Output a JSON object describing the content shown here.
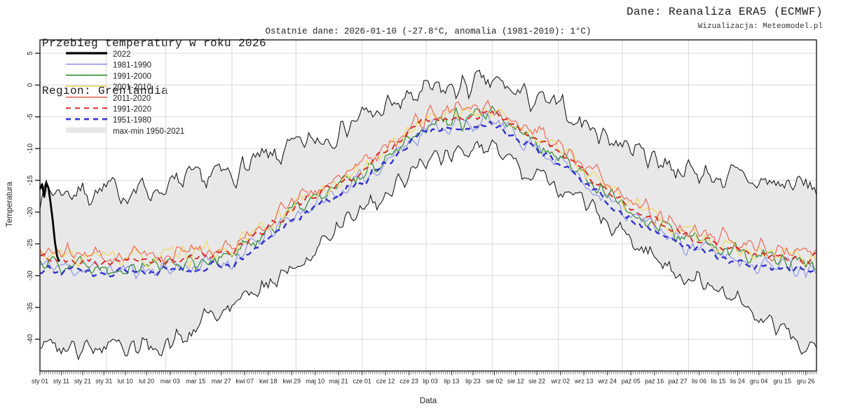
{
  "header": {
    "title_line1": "Przebieg temperatury w roku 2026",
    "title_line2": "Region: Grenlandia",
    "source": "Dane: Reanaliza ERA5 (ECMWF)",
    "visualization": "Wizualizacja: Meteomodel.pl",
    "subtitle": "Ostatnie dane: 2026-01-10 (-27.8°C, anomalia (1981-2010): 1°C)"
  },
  "axes": {
    "x_title": "Data",
    "y_title": "Temperatura"
  },
  "chart_data": {
    "type": "line",
    "title": "Przebieg temperatury w roku 2026",
    "region": "Grenlandia",
    "xlabel": "Data",
    "ylabel": "Temperatura",
    "ylim": [
      -45,
      7.1
    ],
    "yticks": [
      5,
      0,
      -5,
      -10,
      -15,
      -20,
      -25,
      -30,
      -35,
      -40
    ],
    "grid": true,
    "grid_color": "#d8d8d8",
    "frame_color": "#1a1a1a",
    "legend_position": "upper-left",
    "x_tick_labels": [
      {
        "doy": 1,
        "label": "sty 01"
      },
      {
        "doy": 11,
        "label": "sty 11"
      },
      {
        "doy": 21,
        "label": "sty 21"
      },
      {
        "doy": 31,
        "label": "sty 31"
      },
      {
        "doy": 41,
        "label": "lut 10"
      },
      {
        "doy": 51,
        "label": "lut 20"
      },
      {
        "doy": 62,
        "label": "mar 03"
      },
      {
        "doy": 74,
        "label": "mar 15"
      },
      {
        "doy": 86,
        "label": "mar 27"
      },
      {
        "doy": 97,
        "label": "kwi 07"
      },
      {
        "doy": 108,
        "label": "kwi 18"
      },
      {
        "doy": 119,
        "label": "kwi 29"
      },
      {
        "doy": 130,
        "label": "maj 10"
      },
      {
        "doy": 141,
        "label": "maj 21"
      },
      {
        "doy": 152,
        "label": "cze 01"
      },
      {
        "doy": 163,
        "label": "cze 12"
      },
      {
        "doy": 174,
        "label": "cze 23"
      },
      {
        "doy": 184,
        "label": "lip 03"
      },
      {
        "doy": 194,
        "label": "lip 13"
      },
      {
        "doy": 204,
        "label": "lip 23"
      },
      {
        "doy": 214,
        "label": "sie 02"
      },
      {
        "doy": 224,
        "label": "sie 12"
      },
      {
        "doy": 234,
        "label": "sie 22"
      },
      {
        "doy": 245,
        "label": "wrz 02"
      },
      {
        "doy": 256,
        "label": "wrz 13"
      },
      {
        "doy": 267,
        "label": "wrz 24"
      },
      {
        "doy": 278,
        "label": "paź 05"
      },
      {
        "doy": 289,
        "label": "paź 16"
      },
      {
        "doy": 300,
        "label": "paź 27"
      },
      {
        "doy": 310,
        "label": "lis 06"
      },
      {
        "doy": 319,
        "label": "lis 15"
      },
      {
        "doy": 328,
        "label": "lis 24"
      },
      {
        "doy": 338,
        "label": "gru 04"
      },
      {
        "doy": 349,
        "label": "gru 15"
      },
      {
        "doy": 360,
        "label": "gru 26"
      }
    ],
    "month_gridline_doys": [
      32,
      60,
      91,
      121,
      152,
      182,
      213,
      244,
      274,
      305,
      335
    ],
    "anchor_doys": [
      1,
      32,
      60,
      91,
      121,
      152,
      182,
      213,
      244,
      274,
      305,
      335,
      365
    ],
    "band": {
      "name": "max-min 1950-2021",
      "fill": "#e8e8e8",
      "edge_color": "#1a1a1a",
      "max_anchors": [
        -16.5,
        -16.8,
        -16.2,
        -13.8,
        -10.0,
        -5.2,
        -1.2,
        0.3,
        -3.8,
        -9.2,
        -13.6,
        -15.2,
        -16.0
      ],
      "min_anchors": [
        -40.5,
        -41.2,
        -41.0,
        -34.8,
        -28.0,
        -19.5,
        -11.8,
        -10.2,
        -15.8,
        -23.2,
        -30.5,
        -36.0,
        -41.3
      ]
    },
    "band_noise": {
      "max_amp": 1.9,
      "max_seed": 7,
      "min_amp": 1.6,
      "min_seed": 8
    },
    "series": [
      {
        "name": "1981-1990",
        "color": "#8f96e8",
        "width": 1.2,
        "noise": 1.3,
        "seed": 11,
        "anchors": [
          -28.4,
          -29.1,
          -28.9,
          -27.7,
          -20.4,
          -14.9,
          -6.7,
          -5.7,
          -11.7,
          -19.9,
          -25.2,
          -27.9,
          -28.7
        ]
      },
      {
        "name": "1991-2000",
        "color": "#2e8b2e",
        "width": 1.2,
        "noise": 1.3,
        "seed": 22,
        "anchors": [
          -27.6,
          -28.3,
          -28.1,
          -26.9,
          -19.6,
          -14.1,
          -5.9,
          -4.9,
          -10.9,
          -19.1,
          -24.4,
          -27.1,
          -27.9
        ]
      },
      {
        "name": "2001-2010",
        "color": "#eed95e",
        "width": 1.2,
        "noise": 1.3,
        "seed": 33,
        "anchors": [
          -26.7,
          -27.4,
          -27.2,
          -26.0,
          -18.7,
          -13.2,
          -5.0,
          -4.0,
          -10.0,
          -18.2,
          -23.5,
          -26.2,
          -27.0
        ]
      },
      {
        "name": "2011-2020",
        "color": "#ee6a58",
        "width": 1.2,
        "noise": 1.3,
        "seed": 44,
        "anchors": [
          -26.2,
          -26.9,
          -26.7,
          -25.5,
          -18.2,
          -12.7,
          -4.5,
          -3.5,
          -9.5,
          -17.7,
          -23.0,
          -25.7,
          -26.5
        ]
      },
      {
        "name": "1991-2020",
        "color": "#d42a2a",
        "width": 1.9,
        "dash": "8,6",
        "noise": 0.6,
        "seed": 55,
        "anchors": [
          -27.1,
          -27.8,
          -27.6,
          -26.4,
          -19.1,
          -13.6,
          -5.4,
          -4.4,
          -10.4,
          -18.6,
          -23.9,
          -26.6,
          -27.4
        ]
      },
      {
        "name": "1951-1980",
        "color": "#3232cf",
        "width": 2.4,
        "dash": "8,6",
        "noise": 0.6,
        "seed": 66,
        "anchors": [
          -28.8,
          -29.5,
          -29.3,
          -28.1,
          -20.8,
          -15.3,
          -7.1,
          -6.1,
          -12.1,
          -20.3,
          -25.6,
          -28.3,
          -29.1
        ]
      },
      {
        "name": "2022",
        "color": "#000000",
        "width": 2.8,
        "type": "daily",
        "start_doy": 1,
        "values": [
          -16.4,
          -15.6,
          -17.6,
          -15.4,
          -16.2,
          -18.6,
          -21.4,
          -24.6,
          -26.9,
          -27.8
        ]
      }
    ],
    "legend": [
      {
        "label": "2022",
        "swatch": "line",
        "color": "#000000",
        "width": 3.2
      },
      {
        "label": "1981-1990",
        "swatch": "line",
        "color": "#8f96e8",
        "width": 1.6
      },
      {
        "label": "1991-2000",
        "swatch": "line",
        "color": "#2e8b2e",
        "width": 1.6
      },
      {
        "label": "2001-2010",
        "swatch": "line",
        "color": "#eed95e",
        "width": 1.6
      },
      {
        "label": "2011-2020",
        "swatch": "line",
        "color": "#ee6a58",
        "width": 1.6
      },
      {
        "label": "1991-2020",
        "swatch": "line",
        "color": "#d42a2a",
        "width": 2.0,
        "dash": "7,6"
      },
      {
        "label": "1951-1980",
        "swatch": "line",
        "color": "#3232cf",
        "width": 2.6,
        "dash": "7,6"
      },
      {
        "label": "max-min 1950-2021",
        "swatch": "band",
        "color": "#e8e8e8"
      }
    ]
  }
}
